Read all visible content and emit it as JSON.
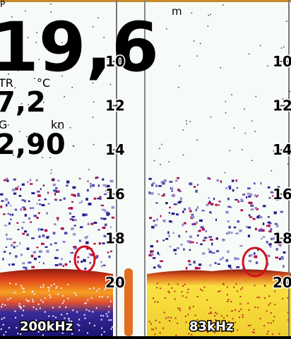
{
  "corner_label": "P",
  "depth": {
    "value": "19,6",
    "unit": "m"
  },
  "temperature": {
    "label": "TR",
    "unit": "°C",
    "value": "7,2"
  },
  "speed": {
    "label": "G",
    "unit": "kn",
    "value": "2,90"
  },
  "left_panel": {
    "frequency": "200kHz",
    "scale": [
      "10",
      "12",
      "14",
      "16",
      "18",
      "20"
    ]
  },
  "right_panel": {
    "frequency": "83kHz",
    "scale": [
      "10",
      "12",
      "14",
      "16",
      "18",
      "20"
    ]
  }
}
